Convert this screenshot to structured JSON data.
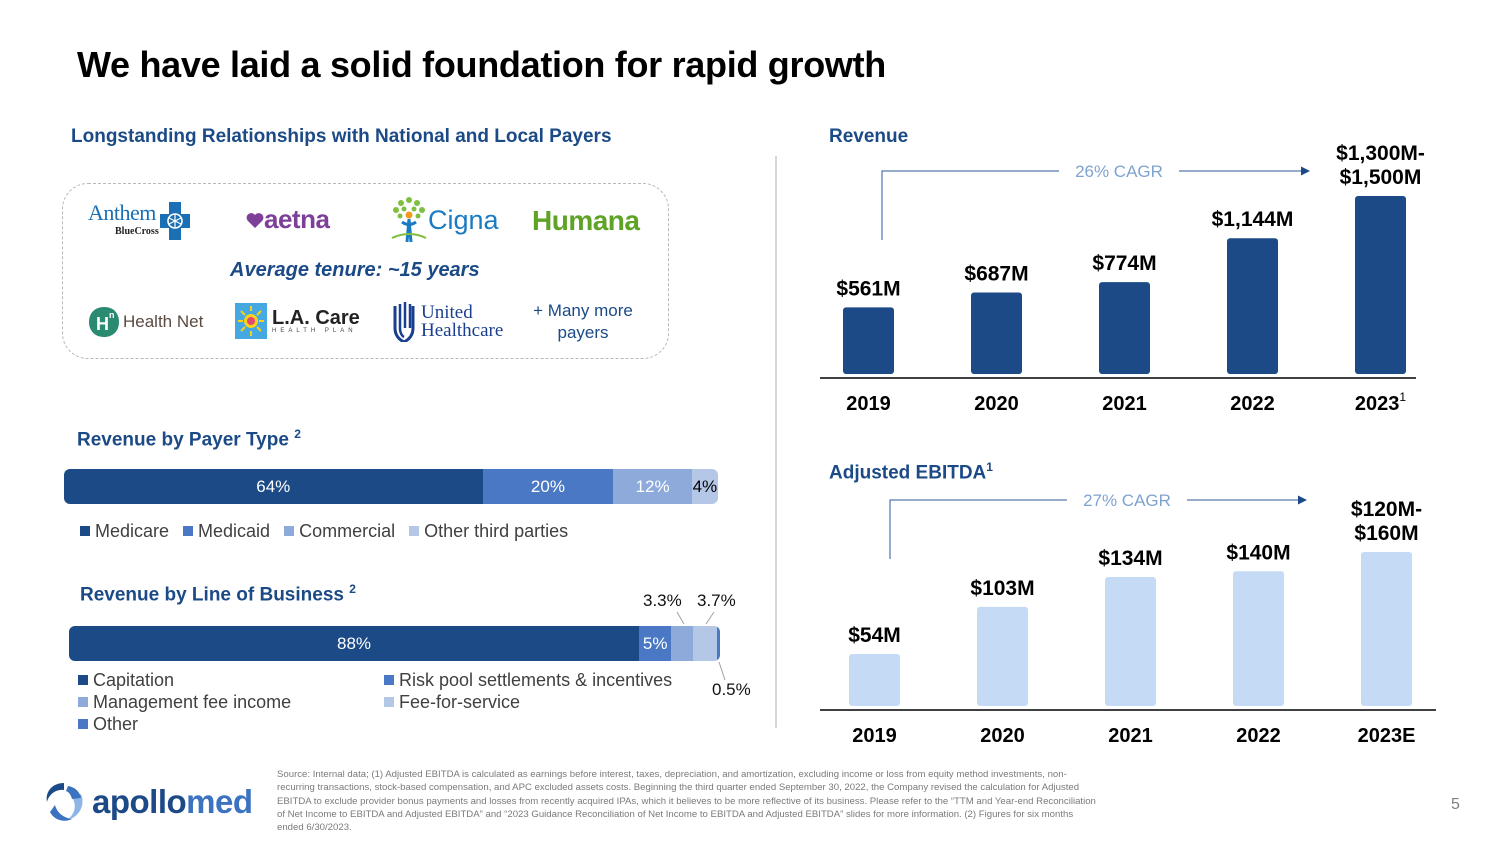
{
  "slide": {
    "title": "We have laid a solid foundation for rapid growth",
    "page_number": "5"
  },
  "payers": {
    "heading": "Longstanding Relationships with National and Local Payers",
    "logos": [
      {
        "name": "Anthem",
        "sub": "BlueCross"
      },
      {
        "name": "aetna"
      },
      {
        "name": "Cigna"
      },
      {
        "name": "Humana"
      },
      {
        "name": "Health Net"
      },
      {
        "name": "L.A. Care",
        "sub": "HEALTH PLAN"
      },
      {
        "name": "United",
        "sub": "Healthcare"
      }
    ],
    "tenure": "Average tenure: ~15 years",
    "many_more_line1": "+ Many more",
    "many_more_line2": "payers"
  },
  "colors": {
    "navy": "#1b4a86",
    "medium_blue": "#4a78c4",
    "light_blue": "#8eaadb",
    "pale_blue": "#b4c7e7",
    "ebitda_bar": "#c5daf5",
    "cagr_text": "#7fa3cf"
  },
  "chart_data": [
    {
      "id": "payer_type",
      "type": "bar",
      "orientation": "horizontal-stacked",
      "title": "Revenue by Payer Type",
      "title_sup": "2",
      "categories": [
        "Medicare",
        "Medicaid",
        "Commercial",
        "Other third parties"
      ],
      "values": [
        64,
        20,
        12,
        4
      ],
      "labels": [
        "64%",
        "20%",
        "12%",
        "4%"
      ],
      "unit": "%",
      "legend": [
        "Medicare",
        "Medicaid",
        "Commercial",
        "Other third parties"
      ],
      "legend_position": "bottom"
    },
    {
      "id": "line_of_business",
      "type": "bar",
      "orientation": "horizontal-stacked",
      "title": "Revenue by Line of Business",
      "title_sup": "2",
      "categories": [
        "Capitation",
        "Risk pool settlements & incentives",
        "Management fee income",
        "Fee-for-service",
        "Other"
      ],
      "values": [
        88,
        5,
        3.3,
        3.7,
        0.5
      ],
      "labels": [
        "88%",
        "5%",
        "3.3%",
        "3.7%",
        "0.5%"
      ],
      "unit": "%",
      "legend": [
        "Capitation",
        "Risk pool settlements & incentives",
        "Management fee income",
        "Fee-for-service",
        "Other"
      ],
      "legend_position": "bottom"
    },
    {
      "id": "revenue",
      "type": "bar",
      "title": "Revenue",
      "categories": [
        "2019",
        "2020",
        "2021",
        "2022",
        "2023"
      ],
      "category_sup": [
        "",
        "",
        "",
        "",
        "1"
      ],
      "values": [
        561,
        687,
        774,
        1144,
        1500
      ],
      "range_low": [
        null,
        null,
        null,
        null,
        1300
      ],
      "labels": [
        "$561M",
        "$687M",
        "$774M",
        "$1,144M",
        "$1,300M-|$1,500M"
      ],
      "unit": "$M",
      "annotation": "26% CAGR",
      "xlabel": "",
      "ylabel": "",
      "ylim": [
        0,
        1500
      ],
      "grid": false
    },
    {
      "id": "ebitda",
      "type": "bar",
      "title": "Adjusted EBITDA",
      "title_sup": "1",
      "categories": [
        "2019",
        "2020",
        "2021",
        "2022",
        "2023E"
      ],
      "category_sup": [
        "",
        "",
        "",
        "",
        ""
      ],
      "values": [
        54,
        103,
        134,
        140,
        160
      ],
      "range_low": [
        null,
        null,
        null,
        null,
        120
      ],
      "labels": [
        "$54M",
        "$103M",
        "$134M",
        "$140M",
        "$120M-|$160M"
      ],
      "unit": "$M",
      "annotation": "27% CAGR",
      "xlabel": "",
      "ylabel": "",
      "ylim": [
        0,
        160
      ],
      "grid": false
    }
  ],
  "footnote": "Source: Internal data; (1) Adjusted EBITDA is calculated as earnings before interest, taxes, depreciation, and amortization, excluding income or loss from equity method investments, non-recurring transactions, stock-based compensation, and APC excluded assets costs. Beginning the third quarter ended September 30, 2022, the Company revised the calculation for Adjusted EBITDA to exclude provider bonus payments and losses from recently acquired IPAs, which it believes to be more reflective of its business. Please refer to the “TTM and Year-end Reconciliation of Net Income to EBITDA and Adjusted EBITDA” and “2023 Guidance Reconciliation of Net Income to EBITDA and Adjusted EBITDA” slides for more information. (2) Figures for six months ended 6/30/2023.",
  "brand": {
    "name_part1": "apollo",
    "name_part2": "med"
  }
}
